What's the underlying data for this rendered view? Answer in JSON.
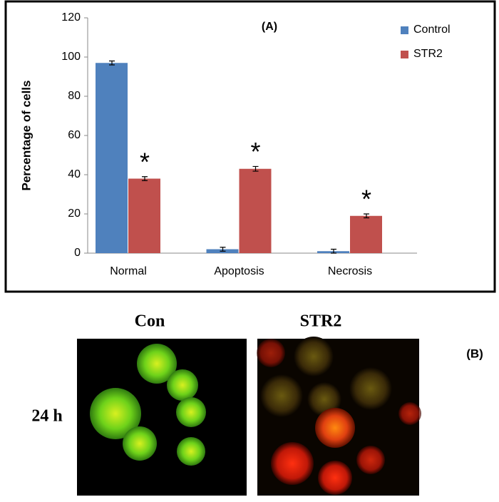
{
  "chart_data": {
    "type": "bar",
    "title": "(A)",
    "y_label": "Percentage of cells",
    "categories": [
      "Normal",
      "Apoptosis",
      "Necrosis"
    ],
    "series": [
      {
        "name": "Control",
        "color": "#4f81bd",
        "values": [
          97,
          2,
          1
        ],
        "errors": [
          1,
          1,
          1
        ]
      },
      {
        "name": "STR2",
        "color": "#c0504d",
        "values": [
          38,
          43,
          19
        ],
        "errors": [
          1,
          1.2,
          1
        ],
        "markers": [
          "*",
          "*",
          "*"
        ]
      }
    ],
    "ylim": [
      0,
      120
    ],
    "yticks": [
      0,
      20,
      40,
      60,
      80,
      100,
      120
    ],
    "legend": "upper right"
  },
  "panel_b": {
    "label": "(B)",
    "columns": [
      "Con",
      "STR2"
    ],
    "rows": [
      "24 h"
    ]
  }
}
